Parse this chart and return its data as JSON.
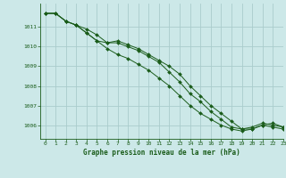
{
  "title": "Graphe pression niveau de la mer (hPa)",
  "background_color": "#cce8e8",
  "grid_color": "#aacccc",
  "line_color": "#1a5c1a",
  "marker_color": "#1a5c1a",
  "xlim": [
    -0.5,
    23
  ],
  "ylim": [
    1005.3,
    1012.2
  ],
  "yticks": [
    1006,
    1007,
    1008,
    1009,
    1010,
    1011
  ],
  "xticks": [
    0,
    1,
    2,
    3,
    4,
    5,
    6,
    7,
    8,
    9,
    10,
    11,
    12,
    13,
    14,
    15,
    16,
    17,
    18,
    19,
    20,
    21,
    22,
    23
  ],
  "series": [
    [
      1011.7,
      1011.7,
      1011.3,
      1011.1,
      1010.9,
      1010.6,
      1010.2,
      1010.2,
      1010.0,
      1009.8,
      1009.5,
      1009.2,
      1008.7,
      1008.2,
      1007.6,
      1007.2,
      1006.7,
      1006.3,
      1005.9,
      1005.8,
      1005.9,
      1006.1,
      1006.0,
      1005.9
    ],
    [
      1011.7,
      1011.7,
      1011.3,
      1011.1,
      1010.7,
      1010.3,
      1010.2,
      1010.3,
      1010.1,
      1009.9,
      1009.6,
      1009.3,
      1009.0,
      1008.6,
      1008.0,
      1007.5,
      1007.0,
      1006.6,
      1006.2,
      1005.8,
      1005.8,
      1006.0,
      1006.1,
      1005.9
    ],
    [
      1011.7,
      1011.7,
      1011.3,
      1011.1,
      1010.7,
      1010.3,
      1009.9,
      1009.6,
      1009.4,
      1009.1,
      1008.8,
      1008.4,
      1008.0,
      1007.5,
      1007.0,
      1006.6,
      1006.3,
      1006.0,
      1005.8,
      1005.7,
      1005.8,
      1006.0,
      1005.9,
      1005.8
    ]
  ]
}
